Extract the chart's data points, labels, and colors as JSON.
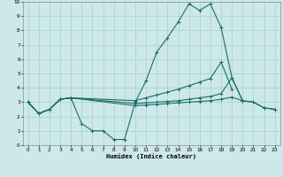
{
  "xlabel": "Humidex (Indice chaleur)",
  "bg_color": "#cce8e8",
  "grid_color": "#aacfcf",
  "line_color": "#1a6e6a",
  "xlim": [
    -0.5,
    23.5
  ],
  "ylim": [
    0,
    10
  ],
  "xticks": [
    0,
    1,
    2,
    3,
    4,
    5,
    6,
    7,
    8,
    9,
    10,
    11,
    12,
    13,
    14,
    15,
    16,
    17,
    18,
    19,
    20,
    21,
    22,
    23
  ],
  "yticks": [
    0,
    1,
    2,
    3,
    4,
    5,
    6,
    7,
    8,
    9,
    10
  ],
  "line1_x": [
    0,
    1,
    2,
    3,
    4,
    5,
    6,
    7,
    8,
    9,
    10,
    11,
    12,
    13,
    14,
    15,
    16,
    17,
    18,
    19,
    20
  ],
  "line1_y": [
    3.0,
    2.2,
    2.5,
    3.2,
    3.3,
    1.5,
    1.0,
    1.0,
    0.4,
    0.4,
    3.0,
    4.5,
    6.5,
    7.5,
    8.6,
    9.85,
    9.4,
    9.85,
    8.2,
    4.7,
    3.1
  ],
  "line2_x": [
    0,
    1,
    2,
    3,
    4,
    10,
    11,
    12,
    13,
    14,
    15,
    16,
    17,
    18,
    19,
    20,
    21,
    22,
    23
  ],
  "line2_y": [
    3.0,
    2.2,
    2.5,
    3.2,
    3.3,
    3.1,
    3.3,
    3.5,
    3.7,
    3.9,
    4.15,
    4.4,
    4.65,
    5.8,
    3.9,
    null,
    null,
    null,
    null
  ],
  "line3_x": [
    0,
    1,
    2,
    3,
    4,
    10,
    11,
    12,
    13,
    14,
    15,
    16,
    17,
    18,
    19,
    20,
    21,
    22,
    23
  ],
  "line3_y": [
    3.0,
    2.2,
    2.5,
    3.2,
    3.3,
    2.9,
    2.95,
    3.0,
    3.05,
    3.1,
    3.2,
    3.3,
    3.4,
    3.6,
    4.7,
    3.1,
    3.0,
    2.6,
    2.5
  ],
  "line4_x": [
    0,
    1,
    2,
    3,
    4,
    10,
    11,
    12,
    13,
    14,
    15,
    16,
    17,
    18,
    19,
    20,
    21,
    22,
    23
  ],
  "line4_y": [
    3.0,
    2.2,
    2.5,
    3.2,
    3.3,
    2.75,
    2.8,
    2.85,
    2.9,
    2.95,
    3.0,
    3.05,
    3.1,
    3.2,
    3.35,
    3.1,
    3.0,
    2.6,
    2.5
  ]
}
